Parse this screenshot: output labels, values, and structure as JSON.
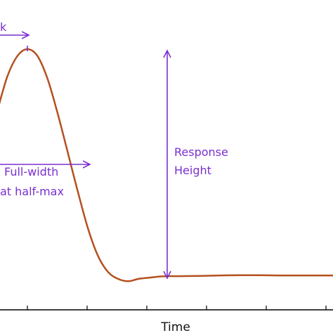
{
  "chart_data": {
    "type": "line",
    "xlabel": "Time",
    "ylabel": "",
    "title": "",
    "grid": false,
    "legend": "none",
    "colors": {
      "curve": "#b5501f",
      "annotation": "#7a2fd0",
      "axis": "#000000"
    },
    "x": [
      0,
      0.5,
      1,
      1.5,
      2,
      2.5,
      3,
      3.5,
      4,
      4.5,
      5,
      5.5,
      6,
      6.5,
      7,
      7.5,
      8,
      8.5,
      9,
      10,
      11,
      12,
      13,
      14,
      15,
      16,
      17
    ],
    "series": [
      {
        "values": [
          0.73,
          0.88,
          0.97,
          1.0,
          0.97,
          0.87,
          0.72,
          0.55,
          0.38,
          0.22,
          0.1,
          0.03,
          0.0,
          -0.01,
          0.0,
          0.005,
          0.01,
          0.012,
          0.012,
          0.013,
          0.015,
          0.016,
          0.016,
          0.015,
          0.015,
          0.015,
          0.015
        ]
      }
    ],
    "annotations": {
      "time_to_peak_fragment": "k",
      "fwhm_line1": "Full-width",
      "fwhm_line2": "at half-max",
      "height_line1": "Response",
      "height_line2": "Height"
    }
  }
}
